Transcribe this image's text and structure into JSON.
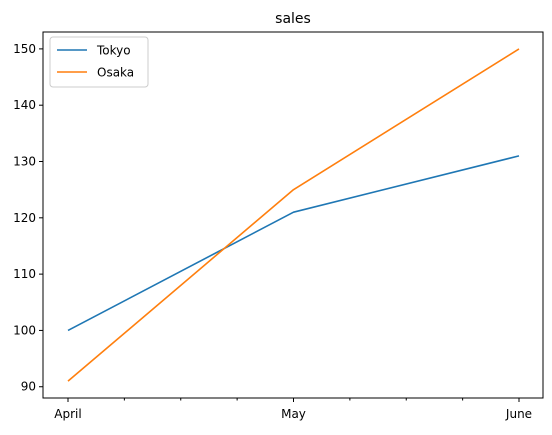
{
  "chart_data": {
    "type": "line",
    "title": "sales",
    "xlabel": "",
    "ylabel": "",
    "categories": [
      "April",
      "May",
      "June"
    ],
    "series": [
      {
        "name": "Tokyo",
        "color": "#1f77b4",
        "values": [
          100,
          121,
          131
        ]
      },
      {
        "name": "Osaka",
        "color": "#ff7f0e",
        "values": [
          91,
          125,
          150
        ]
      }
    ],
    "yticks": [
      90,
      100,
      110,
      120,
      130,
      140,
      150
    ],
    "ylim": [
      88,
      153
    ],
    "grid": false,
    "legend": "top-left"
  }
}
